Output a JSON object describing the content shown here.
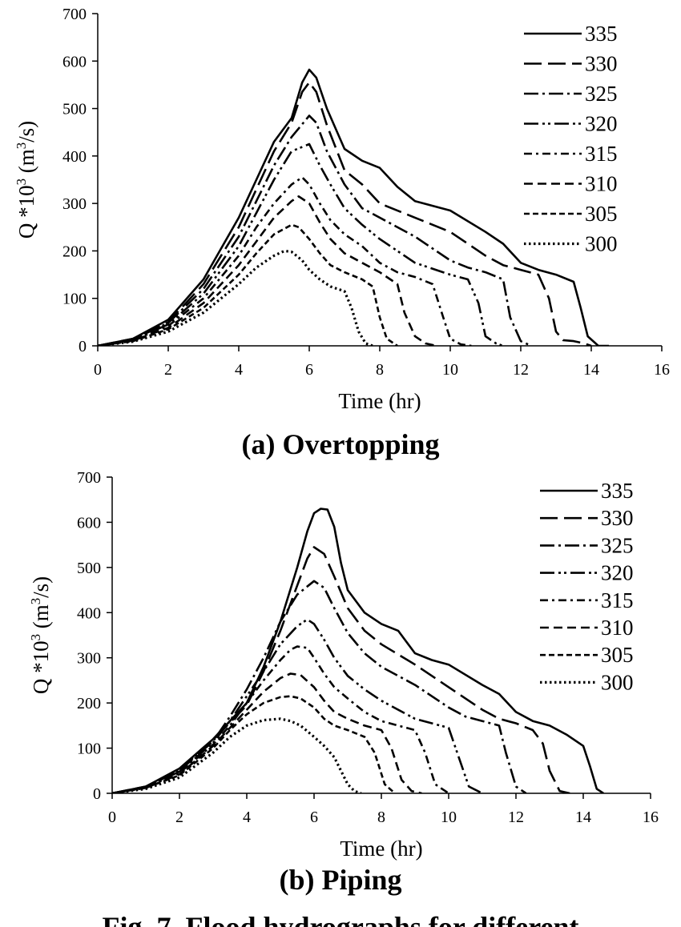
{
  "figure_caption": "Fig. 7. Flood hydrographs for different",
  "chart_data": [
    {
      "type": "line",
      "panel_title": "(a) Overtopping",
      "xlabel": "Time (hr)",
      "ylabel": "Q *10 3 (m3/s)",
      "ylabel_parts": {
        "main": "Q *10",
        "exp": "3",
        "unit_open": " (m",
        "unit_exp": "3",
        "unit_close": "/s)"
      },
      "xlim": [
        0,
        16
      ],
      "ylim": [
        0,
        700
      ],
      "xticks": [
        "0",
        "2",
        "4",
        "6",
        "8",
        "10",
        "12",
        "14",
        "16"
      ],
      "yticks": [
        "0",
        "100",
        "200",
        "300",
        "400",
        "500",
        "600",
        "700"
      ],
      "grid": false,
      "legend_position": "top-right",
      "series": [
        {
          "name": "335",
          "dash": "solid",
          "x": [
            0,
            1,
            2,
            3,
            4,
            4.5,
            5,
            5.5,
            5.8,
            6,
            6.2,
            6.5,
            7,
            7.5,
            8,
            8.5,
            9,
            9.5,
            10,
            11,
            11.5,
            12,
            12.5,
            13,
            13.5,
            13.7,
            13.9,
            14.2,
            14.5
          ],
          "y": [
            0,
            15,
            55,
            140,
            270,
            350,
            430,
            480,
            555,
            582,
            565,
            500,
            415,
            390,
            375,
            335,
            305,
            295,
            285,
            240,
            215,
            175,
            160,
            150,
            135,
            80,
            20,
            0,
            0
          ]
        },
        {
          "name": "330",
          "dash": "long-dash",
          "x": [
            0,
            1,
            2,
            3,
            4,
            4.5,
            5,
            5.5,
            5.8,
            6,
            6.2,
            6.5,
            7,
            7.5,
            8,
            9,
            10,
            11,
            11.5,
            12,
            12.5,
            12.8,
            13,
            13.2,
            13.5,
            13.8,
            14
          ],
          "y": [
            0,
            15,
            50,
            130,
            250,
            330,
            410,
            470,
            535,
            555,
            535,
            465,
            370,
            340,
            300,
            270,
            240,
            190,
            170,
            160,
            150,
            100,
            30,
            12,
            10,
            5,
            0
          ]
        },
        {
          "name": "325",
          "dash": "dash-dot",
          "x": [
            0,
            1,
            2,
            3,
            4,
            4.5,
            5,
            5.5,
            6,
            6.2,
            6.5,
            7,
            7.5,
            8,
            9,
            10,
            10.5,
            11,
            11.5,
            11.7,
            12,
            12.3
          ],
          "y": [
            0,
            14,
            48,
            120,
            230,
            305,
            380,
            440,
            485,
            470,
            410,
            340,
            290,
            270,
            230,
            180,
            165,
            155,
            140,
            60,
            10,
            0
          ]
        },
        {
          "name": "320",
          "dash": "dash-dot-dot",
          "x": [
            0,
            1,
            2,
            3,
            4,
            4.5,
            5,
            5.5,
            6,
            6.3,
            6.6,
            7,
            7.5,
            8,
            9,
            10,
            10.5,
            10.8,
            11,
            11.3,
            11.5
          ],
          "y": [
            0,
            13,
            45,
            110,
            210,
            280,
            350,
            410,
            425,
            380,
            340,
            290,
            255,
            225,
            175,
            150,
            140,
            90,
            20,
            5,
            0
          ]
        },
        {
          "name": "315",
          "dash": "long-dash-dot",
          "x": [
            0,
            1,
            2,
            3,
            4,
            4.5,
            5,
            5.5,
            5.8,
            6,
            6.3,
            6.6,
            7,
            7.5,
            8,
            8.5,
            9,
            9.5,
            9.8,
            10,
            10.3,
            10.6
          ],
          "y": [
            0,
            12,
            42,
            100,
            190,
            250,
            300,
            340,
            355,
            340,
            300,
            265,
            235,
            210,
            175,
            155,
            145,
            130,
            60,
            15,
            3,
            0
          ]
        },
        {
          "name": "310",
          "dash": "dash",
          "x": [
            0,
            1,
            2,
            3,
            4,
            4.5,
            5,
            5.5,
            5.7,
            6,
            6.3,
            6.6,
            7,
            7.5,
            8,
            8.5,
            8.7,
            9,
            9.3,
            9.6
          ],
          "y": [
            0,
            11,
            38,
            90,
            170,
            220,
            270,
            305,
            315,
            300,
            260,
            225,
            195,
            175,
            155,
            130,
            70,
            20,
            5,
            0
          ]
        },
        {
          "name": "305",
          "dash": "short-dash",
          "x": [
            0,
            1,
            2,
            3,
            4,
            4.5,
            5,
            5.5,
            5.7,
            6,
            6.3,
            6.6,
            7,
            7.5,
            7.8,
            8,
            8.2,
            8.5
          ],
          "y": [
            0,
            10,
            35,
            80,
            150,
            195,
            235,
            255,
            250,
            225,
            195,
            170,
            155,
            140,
            125,
            60,
            15,
            0
          ]
        },
        {
          "name": "300",
          "dash": "dotted",
          "x": [
            0,
            1,
            2,
            3,
            4,
            4.5,
            5,
            5.3,
            5.5,
            5.8,
            6,
            6.3,
            6.6,
            7,
            7.2,
            7.4,
            7.6,
            7.8
          ],
          "y": [
            0,
            9,
            30,
            70,
            130,
            165,
            190,
            200,
            198,
            180,
            160,
            140,
            125,
            115,
            80,
            30,
            5,
            0
          ]
        }
      ]
    },
    {
      "type": "line",
      "panel_title": "(b) Piping",
      "xlabel": "Time (hr)",
      "ylabel": "Q *10 3 (m3/s)",
      "ylabel_parts": {
        "main": "Q *10",
        "exp": "3",
        "unit_open": " (m",
        "unit_exp": "3",
        "unit_close": "/s)"
      },
      "xlim": [
        0,
        16
      ],
      "ylim": [
        0,
        700
      ],
      "xticks": [
        "0",
        "2",
        "4",
        "6",
        "8",
        "10",
        "12",
        "14",
        "16"
      ],
      "yticks": [
        "0",
        "100",
        "200",
        "300",
        "400",
        "500",
        "600",
        "700"
      ],
      "grid": false,
      "legend_position": "top-right",
      "series": [
        {
          "name": "335",
          "dash": "solid",
          "x": [
            0,
            1,
            2,
            3,
            4,
            4.5,
            5,
            5.5,
            5.8,
            6,
            6.2,
            6.4,
            6.6,
            6.8,
            7,
            7.5,
            8,
            8.5,
            9,
            9.5,
            10,
            11,
            11.5,
            12,
            12.5,
            13,
            13.5,
            14,
            14.2,
            14.4,
            14.6
          ],
          "y": [
            0,
            15,
            55,
            120,
            200,
            280,
            380,
            500,
            580,
            620,
            630,
            628,
            590,
            510,
            450,
            400,
            375,
            360,
            310,
            295,
            285,
            240,
            220,
            180,
            160,
            150,
            130,
            105,
            60,
            10,
            0
          ]
        },
        {
          "name": "330",
          "dash": "long-dash",
          "x": [
            0,
            1,
            2,
            3,
            4,
            4.5,
            5,
            5.5,
            5.8,
            6,
            6.3,
            6.6,
            7,
            7.5,
            8,
            9,
            10,
            11,
            11.5,
            12,
            12.5,
            12.8,
            13,
            13.3,
            13.6
          ],
          "y": [
            0,
            15,
            52,
            118,
            195,
            270,
            360,
            460,
            520,
            545,
            530,
            480,
            410,
            360,
            330,
            285,
            235,
            185,
            165,
            155,
            140,
            110,
            50,
            5,
            0
          ]
        },
        {
          "name": "325",
          "dash": "dash-dot",
          "x": [
            0,
            1,
            2,
            3,
            3.5,
            4,
            4.5,
            5,
            5.5,
            6,
            6.3,
            6.6,
            7,
            7.5,
            8,
            9,
            10,
            10.5,
            11,
            11.5,
            11.7,
            12,
            12.3
          ],
          "y": [
            0,
            14,
            50,
            115,
            170,
            230,
            300,
            380,
            440,
            470,
            455,
            410,
            355,
            310,
            280,
            240,
            190,
            170,
            160,
            150,
            90,
            15,
            0
          ]
        },
        {
          "name": "320",
          "dash": "dash-dot-dot",
          "x": [
            0,
            1,
            2,
            3,
            3.5,
            4,
            4.5,
            5,
            5.5,
            5.8,
            6,
            6.3,
            6.6,
            7,
            7.5,
            8,
            9,
            9.5,
            10,
            10.3,
            10.6,
            11
          ],
          "y": [
            0,
            14,
            48,
            112,
            160,
            215,
            270,
            330,
            370,
            385,
            375,
            340,
            300,
            260,
            230,
            205,
            165,
            155,
            145,
            80,
            15,
            0
          ]
        },
        {
          "name": "315",
          "dash": "long-dash-dot",
          "x": [
            0,
            1,
            2,
            3,
            3.5,
            4,
            4.5,
            5,
            5.3,
            5.5,
            5.8,
            6,
            6.3,
            6.6,
            7,
            7.5,
            8,
            8.5,
            9,
            9.3,
            9.6,
            10
          ],
          "y": [
            0,
            13,
            45,
            108,
            150,
            200,
            250,
            295,
            318,
            325,
            322,
            300,
            265,
            235,
            210,
            180,
            160,
            150,
            140,
            90,
            20,
            0
          ]
        },
        {
          "name": "310",
          "dash": "dash",
          "x": [
            0,
            1,
            2,
            3,
            3.5,
            4,
            4.5,
            5,
            5.3,
            5.6,
            6,
            6.3,
            6.6,
            7,
            7.5,
            8,
            8.3,
            8.6,
            8.9,
            9.2
          ],
          "y": [
            0,
            12,
            42,
            105,
            145,
            185,
            225,
            255,
            265,
            262,
            235,
            205,
            180,
            165,
            150,
            140,
            100,
            30,
            5,
            0
          ]
        },
        {
          "name": "305",
          "dash": "short-dash",
          "x": [
            0,
            1,
            2,
            3,
            3.5,
            4,
            4.5,
            5,
            5.3,
            5.6,
            6,
            6.3,
            6.6,
            7,
            7.5,
            7.8,
            8.1,
            8.4
          ],
          "y": [
            0,
            12,
            40,
            100,
            140,
            175,
            200,
            213,
            215,
            210,
            190,
            165,
            150,
            140,
            125,
            90,
            20,
            0
          ]
        },
        {
          "name": "300",
          "dash": "dotted",
          "x": [
            0,
            1,
            2,
            3,
            3.5,
            4,
            4.5,
            5,
            5.3,
            5.6,
            6,
            6.3,
            6.6,
            6.8,
            7,
            7.2,
            7.4
          ],
          "y": [
            0,
            10,
            35,
            90,
            125,
            150,
            162,
            165,
            160,
            150,
            125,
            105,
            80,
            50,
            20,
            5,
            0
          ]
        }
      ]
    }
  ]
}
